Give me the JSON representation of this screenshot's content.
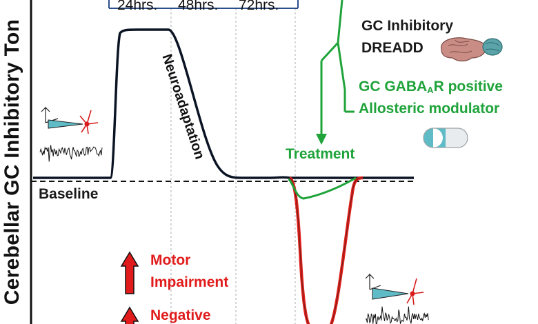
{
  "y_axis_label": "Cerebellar GC Inhibitory Ton",
  "time_labels": [
    "24hrs.",
    "48hrs.",
    "72hrs."
  ],
  "curve_label": "Neuroadaptation",
  "baseline_label": "Baseline",
  "treatments": {
    "dreadd_line1": "GC Inhibitory",
    "dreadd_line2": "DREADD",
    "pam_line1_prefix": "GC GABA",
    "pam_line1_sub": "A",
    "pam_line1_suffix": "R positive",
    "pam_line2": "Allosteric modulator",
    "treatment_label": "Treatment"
  },
  "effects": {
    "motor_line1": "Motor",
    "motor_line2": "Impairment",
    "negative_label": "Negative"
  },
  "colors": {
    "black_curve": "#0b1424",
    "red_curve": "#e0201b",
    "green": "#1fa33a",
    "bracket": "#2b4f8c",
    "capsule_teal": "#5fbcc6",
    "brain": "#c98d86",
    "cerebellum": "#5aa3a8"
  },
  "icons": [
    "electrode-neuron-icon",
    "brain-icon",
    "capsule-icon",
    "up-arrow-icon"
  ]
}
